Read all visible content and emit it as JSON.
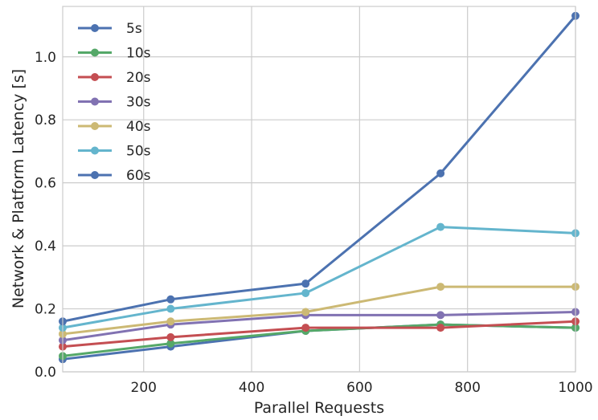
{
  "chart_data": {
    "type": "line",
    "xlabel": "Parallel Requests",
    "ylabel": "Network & Platform Latency [s]",
    "xlim": [
      50,
      1000
    ],
    "ylim": [
      0.0,
      1.16
    ],
    "xticks": [
      200,
      400,
      600,
      800,
      1000
    ],
    "yticks": [
      0.0,
      0.2,
      0.4,
      0.6,
      0.8,
      1.0
    ],
    "ytick_labels": [
      "0.0",
      "0.2",
      "0.4",
      "0.6",
      "0.8",
      "1.0"
    ],
    "grid": true,
    "legend_position": "top-left",
    "x": [
      50,
      250,
      500,
      750,
      1000
    ],
    "series": [
      {
        "name": "5s",
        "color": "#4C72B0",
        "values": [
          0.04,
          0.08,
          0.13,
          0.15,
          0.14
        ]
      },
      {
        "name": "10s",
        "color": "#55A868",
        "values": [
          0.05,
          0.09,
          0.13,
          0.15,
          0.14
        ]
      },
      {
        "name": "20s",
        "color": "#C44E52",
        "values": [
          0.08,
          0.11,
          0.14,
          0.14,
          0.16
        ]
      },
      {
        "name": "30s",
        "color": "#8172B2",
        "values": [
          0.1,
          0.15,
          0.18,
          0.18,
          0.19
        ]
      },
      {
        "name": "40s",
        "color": "#CCB974",
        "values": [
          0.12,
          0.16,
          0.19,
          0.27,
          0.27
        ]
      },
      {
        "name": "50s",
        "color": "#64B5CD",
        "values": [
          0.14,
          0.2,
          0.25,
          0.46,
          0.44
        ]
      },
      {
        "name": "60s",
        "color": "#4C72B0",
        "values": [
          0.16,
          0.23,
          0.28,
          0.63,
          1.13
        ]
      }
    ]
  }
}
